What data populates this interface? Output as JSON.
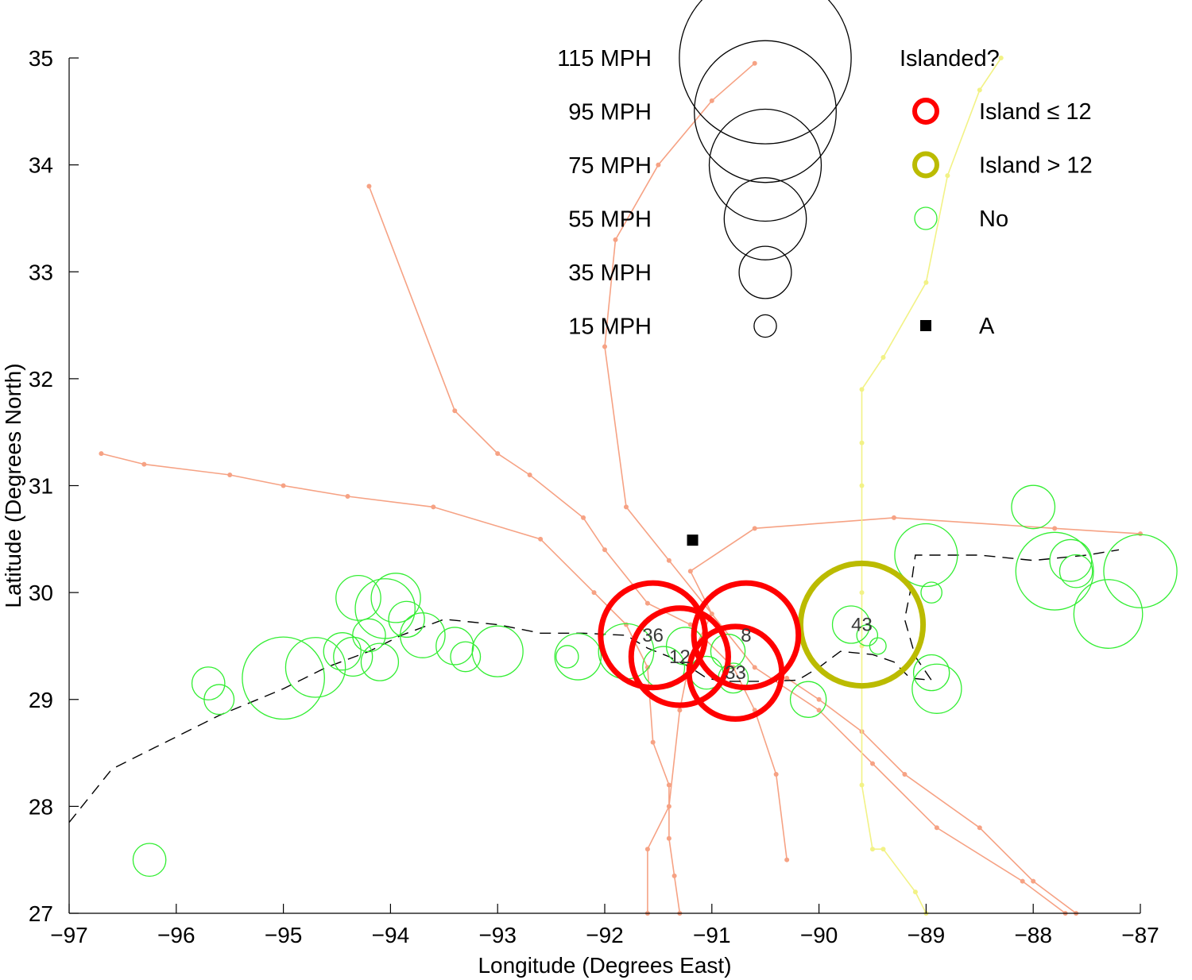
{
  "chart_data": {
    "type": "scatter",
    "xlabel": "Longitude (Degrees East)",
    "ylabel": "Latitude (Degrees North)",
    "xlim": [
      -97,
      -87
    ],
    "ylim": [
      27,
      35
    ],
    "xticks": [
      -97,
      -96,
      -95,
      -94,
      -93,
      -92,
      -91,
      -90,
      -89,
      -88,
      -87
    ],
    "yticks": [
      27,
      28,
      29,
      30,
      31,
      32,
      33,
      34,
      35
    ],
    "xtick_labels": [
      "−97",
      "−96",
      "−95",
      "−94",
      "−93",
      "−92",
      "−91",
      "−90",
      "−89",
      "−88",
      "−87"
    ],
    "ytick_labels": [
      "27",
      "28",
      "29",
      "30",
      "31",
      "32",
      "33",
      "34",
      "35"
    ],
    "grid": false,
    "colors": {
      "island_le_12": "#ff0000",
      "island_gt_12": "#bbbb00",
      "no": "#33ee33",
      "track_orange": "#f6a284",
      "track_yellow": "#f2f286",
      "dashed": "#000000",
      "marker": "#000000"
    },
    "legend_size": {
      "placement": "top-center",
      "entries": [
        {
          "label": "115 MPH",
          "mph": 115
        },
        {
          "label": "95 MPH",
          "mph": 95
        },
        {
          "label": "75 MPH",
          "mph": 75
        },
        {
          "label": "55 MPH",
          "mph": 55
        },
        {
          "label": "35 MPH",
          "mph": 35
        },
        {
          "label": "15 MPH",
          "mph": 15
        }
      ]
    },
    "legend_islanded": {
      "placement": "top-right",
      "title": "Islanded?",
      "entries": [
        {
          "label": "Island ≤ 12",
          "category": "island_le_12"
        },
        {
          "label": "Island > 12",
          "category": "island_gt_12"
        },
        {
          "label": "No",
          "category": "no"
        },
        {
          "label": "A",
          "category": "marker"
        }
      ]
    },
    "point_A": {
      "label": "A",
      "lon": -91.18,
      "lat": 30.49
    },
    "dashed_path": [
      [
        -97.0,
        27.85
      ],
      [
        -96.6,
        28.35
      ],
      [
        -96.2,
        28.55
      ],
      [
        -95.6,
        28.85
      ],
      [
        -95.0,
        29.1
      ],
      [
        -94.6,
        29.3
      ],
      [
        -94.2,
        29.45
      ],
      [
        -93.9,
        29.6
      ],
      [
        -93.5,
        29.75
      ],
      [
        -93.0,
        29.7
      ],
      [
        -92.6,
        29.62
      ],
      [
        -92.2,
        29.62
      ],
      [
        -91.8,
        29.6
      ],
      [
        -91.6,
        29.48
      ],
      [
        -91.4,
        29.4
      ],
      [
        -91.2,
        29.3
      ],
      [
        -91.05,
        29.2
      ],
      [
        -90.9,
        29.17
      ],
      [
        -90.5,
        29.17
      ],
      [
        -90.2,
        29.18
      ],
      [
        -90.0,
        29.3
      ],
      [
        -89.8,
        29.45
      ],
      [
        -89.5,
        29.42
      ],
      [
        -89.3,
        29.35
      ],
      [
        -89.15,
        29.2
      ],
      [
        -88.95,
        29.18
      ],
      [
        -89.1,
        29.4
      ],
      [
        -89.2,
        29.75
      ],
      [
        -89.15,
        30.0
      ],
      [
        -89.1,
        30.35
      ],
      [
        -88.5,
        30.35
      ],
      [
        -88.0,
        30.3
      ],
      [
        -87.5,
        30.35
      ],
      [
        -87.2,
        30.4
      ]
    ],
    "tracks": [
      {
        "color": "track_orange",
        "points": [
          [
            -90.6,
            34.95
          ],
          [
            -91.0,
            34.6
          ],
          [
            -91.5,
            34.0
          ],
          [
            -91.9,
            33.3
          ],
          [
            -92.0,
            32.3
          ],
          [
            -91.8,
            30.8
          ],
          [
            -91.4,
            30.3
          ],
          [
            -90.6,
            29.3
          ],
          [
            -90.0,
            28.9
          ],
          [
            -89.5,
            28.4
          ],
          [
            -88.9,
            27.8
          ],
          [
            -88.1,
            27.3
          ],
          [
            -87.7,
            27.0
          ]
        ]
      },
      {
        "color": "track_orange",
        "points": [
          [
            -94.2,
            33.8
          ],
          [
            -93.4,
            31.7
          ],
          [
            -93.0,
            31.3
          ],
          [
            -92.7,
            31.1
          ],
          [
            -92.2,
            30.7
          ],
          [
            -92.0,
            30.4
          ],
          [
            -91.6,
            29.9
          ],
          [
            -91.2,
            29.7
          ],
          [
            -90.8,
            29.3
          ],
          [
            -90.6,
            28.9
          ],
          [
            -90.4,
            28.3
          ],
          [
            -90.3,
            27.5
          ]
        ]
      },
      {
        "color": "track_orange",
        "points": [
          [
            -96.7,
            31.3
          ],
          [
            -96.3,
            31.2
          ],
          [
            -95.5,
            31.1
          ],
          [
            -95.0,
            31.0
          ],
          [
            -94.4,
            30.9
          ],
          [
            -93.6,
            30.8
          ],
          [
            -92.6,
            30.5
          ],
          [
            -92.1,
            30.0
          ],
          [
            -91.8,
            29.7
          ],
          [
            -91.6,
            29.3
          ],
          [
            -91.55,
            28.6
          ],
          [
            -91.4,
            28.2
          ],
          [
            -91.4,
            27.7
          ],
          [
            -91.35,
            27.35
          ],
          [
            -91.3,
            27.0
          ]
        ]
      },
      {
        "color": "track_orange",
        "points": [
          [
            -91.6,
            27.0
          ],
          [
            -91.6,
            27.6
          ],
          [
            -91.4,
            28.0
          ],
          [
            -91.3,
            28.9
          ],
          [
            -91.2,
            29.4
          ],
          [
            -91.0,
            29.8
          ],
          [
            -91.2,
            30.2
          ],
          [
            -90.6,
            30.6
          ],
          [
            -89.3,
            30.7
          ],
          [
            -87.8,
            30.6
          ],
          [
            -87.0,
            30.55
          ]
        ]
      },
      {
        "color": "track_orange",
        "points": [
          [
            -90.3,
            29.2
          ],
          [
            -90.0,
            29.0
          ],
          [
            -89.6,
            28.7
          ],
          [
            -89.2,
            28.3
          ],
          [
            -88.5,
            27.8
          ],
          [
            -88.0,
            27.3
          ],
          [
            -87.6,
            27.0
          ]
        ]
      },
      {
        "color": "track_yellow",
        "points": [
          [
            -88.3,
            35.0
          ],
          [
            -88.5,
            34.7
          ],
          [
            -88.8,
            33.9
          ],
          [
            -89.0,
            32.9
          ],
          [
            -89.4,
            32.2
          ],
          [
            -89.6,
            31.9
          ],
          [
            -89.6,
            31.4
          ],
          [
            -89.6,
            31.0
          ],
          [
            -89.6,
            30.0
          ],
          [
            -89.6,
            29.5
          ],
          [
            -89.6,
            28.2
          ],
          [
            -89.5,
            27.6
          ],
          [
            -89.4,
            27.6
          ],
          [
            -89.1,
            27.2
          ],
          [
            -89.0,
            27.0
          ]
        ]
      }
    ],
    "bubbles": [
      {
        "category": "island_le_12",
        "lon": -91.55,
        "lat": 29.6,
        "mph": 70,
        "label": "36"
      },
      {
        "category": "island_le_12",
        "lon": -91.3,
        "lat": 29.4,
        "mph": 65,
        "label": "12"
      },
      {
        "category": "island_le_12",
        "lon": -90.68,
        "lat": 29.6,
        "mph": 70,
        "label": "8"
      },
      {
        "category": "island_le_12",
        "lon": -90.78,
        "lat": 29.25,
        "mph": 62,
        "label": "33"
      },
      {
        "category": "island_gt_12",
        "lon": -89.6,
        "lat": 29.7,
        "mph": 82,
        "label": "43"
      },
      {
        "category": "no",
        "lon": -96.25,
        "lat": 27.5,
        "mph": 22
      },
      {
        "category": "no",
        "lon": -95.7,
        "lat": 29.15,
        "mph": 22
      },
      {
        "category": "no",
        "lon": -95.6,
        "lat": 29.0,
        "mph": 20
      },
      {
        "category": "no",
        "lon": -95.0,
        "lat": 29.2,
        "mph": 55
      },
      {
        "category": "no",
        "lon": -94.7,
        "lat": 29.3,
        "mph": 40
      },
      {
        "category": "no",
        "lon": -94.45,
        "lat": 29.45,
        "mph": 25
      },
      {
        "category": "no",
        "lon": -94.35,
        "lat": 29.4,
        "mph": 26
      },
      {
        "category": "no",
        "lon": -94.3,
        "lat": 29.95,
        "mph": 30
      },
      {
        "category": "no",
        "lon": -94.2,
        "lat": 29.6,
        "mph": 22
      },
      {
        "category": "no",
        "lon": -94.1,
        "lat": 29.35,
        "mph": 25
      },
      {
        "category": "no",
        "lon": -94.05,
        "lat": 29.85,
        "mph": 40
      },
      {
        "category": "no",
        "lon": -93.95,
        "lat": 29.95,
        "mph": 33
      },
      {
        "category": "no",
        "lon": -93.85,
        "lat": 29.75,
        "mph": 24
      },
      {
        "category": "no",
        "lon": -93.7,
        "lat": 29.6,
        "mph": 30
      },
      {
        "category": "no",
        "lon": -93.4,
        "lat": 29.5,
        "mph": 25
      },
      {
        "category": "no",
        "lon": -93.3,
        "lat": 29.4,
        "mph": 20
      },
      {
        "category": "no",
        "lon": -93.0,
        "lat": 29.45,
        "mph": 34
      },
      {
        "category": "no",
        "lon": -92.35,
        "lat": 29.4,
        "mph": 15
      },
      {
        "category": "no",
        "lon": -92.25,
        "lat": 29.4,
        "mph": 31
      },
      {
        "category": "no",
        "lon": -91.8,
        "lat": 29.45,
        "mph": 37
      },
      {
        "category": "no",
        "lon": -91.45,
        "lat": 29.3,
        "mph": 28
      },
      {
        "category": "no",
        "lon": -91.25,
        "lat": 29.5,
        "mph": 25
      },
      {
        "category": "no",
        "lon": -91.05,
        "lat": 29.25,
        "mph": 22
      },
      {
        "category": "no",
        "lon": -90.85,
        "lat": 29.45,
        "mph": 23
      },
      {
        "category": "no",
        "lon": -90.8,
        "lat": 29.2,
        "mph": 20
      },
      {
        "category": "no",
        "lon": -90.1,
        "lat": 29.0,
        "mph": 24
      },
      {
        "category": "no",
        "lon": -89.7,
        "lat": 29.7,
        "mph": 25
      },
      {
        "category": "no",
        "lon": -89.55,
        "lat": 29.6,
        "mph": 14
      },
      {
        "category": "no",
        "lon": -89.45,
        "lat": 29.5,
        "mph": 11
      },
      {
        "category": "no",
        "lon": -89.0,
        "lat": 30.35,
        "mph": 42
      },
      {
        "category": "no",
        "lon": -88.95,
        "lat": 30.0,
        "mph": 14
      },
      {
        "category": "no",
        "lon": -88.95,
        "lat": 29.25,
        "mph": 24
      },
      {
        "category": "no",
        "lon": -88.9,
        "lat": 29.1,
        "mph": 33
      },
      {
        "category": "no",
        "lon": -88.0,
        "lat": 30.8,
        "mph": 29
      },
      {
        "category": "no",
        "lon": -87.8,
        "lat": 30.2,
        "mph": 52
      },
      {
        "category": "no",
        "lon": -87.65,
        "lat": 30.3,
        "mph": 28
      },
      {
        "category": "no",
        "lon": -87.6,
        "lat": 30.2,
        "mph": 22
      },
      {
        "category": "no",
        "lon": -87.3,
        "lat": 29.8,
        "mph": 46
      },
      {
        "category": "no",
        "lon": -87.0,
        "lat": 30.2,
        "mph": 49
      }
    ]
  }
}
